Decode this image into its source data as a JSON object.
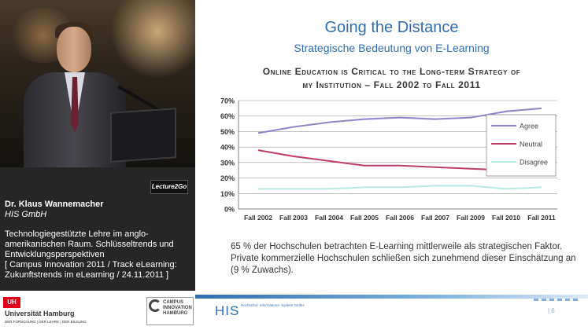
{
  "video": {
    "badge": "Lecture2Go"
  },
  "speaker": {
    "name": "Dr. Klaus Wannemacher",
    "org": "HIS GmbH"
  },
  "talk": {
    "title": "Technologiegestützte Lehre im anglo-amerikanischen Raum. Schlüsseltrends und Entwicklungsperspektiven",
    "track": "[ Campus Innovation 2011 / Track eLearning: Zukunftstrends im eLearning / 24.11.2011 ]"
  },
  "logos": {
    "uhh_mark": "UH",
    "uhh_name": "Universität Hamburg",
    "uhh_tag": "DER FORSCHUNG | DER LEHRE | DER BILDUNG",
    "ci_text": "CAMPUS INNOVATION HAMBURG"
  },
  "slide": {
    "title": "Going the Distance",
    "subtitle": "Strategische Bedeutung von E-Learning",
    "chart_title_line1": "Online Education is Critical to the Long-term Strategy of",
    "chart_title_line2": "my Institution – Fall 2002 to Fall 2011",
    "description": "65 % der Hochschulen betrachten E-Learning mittlerweile als strategischen Faktor. Private kommerzielle Hochschulen schließen sich zunehmend dieser Einschätzung an (9 % Zuwachs).",
    "his_logo": "HIS",
    "his_tag": "Hochschul- Informations- System GmbH",
    "page_number": "| 6"
  },
  "chart_data": {
    "type": "line",
    "title": "Online Education is Critical to the Long-term Strategy of my Institution – Fall 2002 to Fall 2011",
    "categories": [
      "Fall 2002",
      "Fall 2003",
      "Fall 2004",
      "Fall 2005",
      "Fall 2006",
      "Fall 2007",
      "Fall 2009",
      "Fall 2010",
      "Fall 2011"
    ],
    "ylim": [
      0,
      70
    ],
    "yticks": [
      "0%",
      "10%",
      "20%",
      "30%",
      "40%",
      "50%",
      "60%",
      "70%"
    ],
    "grid": true,
    "legend_position": "right",
    "series": [
      {
        "name": "Agree",
        "color": "#8a86c9",
        "values": [
          49,
          53,
          56,
          58,
          59,
          58,
          59,
          63,
          65
        ]
      },
      {
        "name": "Neutral",
        "color": "#c03a6e",
        "values": [
          38,
          34,
          31,
          28,
          28,
          27,
          26,
          25,
          22
        ]
      },
      {
        "name": "Disagree",
        "color": "#b7e8e4",
        "values": [
          13,
          13,
          13,
          14,
          14,
          15,
          15,
          13,
          14
        ]
      }
    ]
  }
}
